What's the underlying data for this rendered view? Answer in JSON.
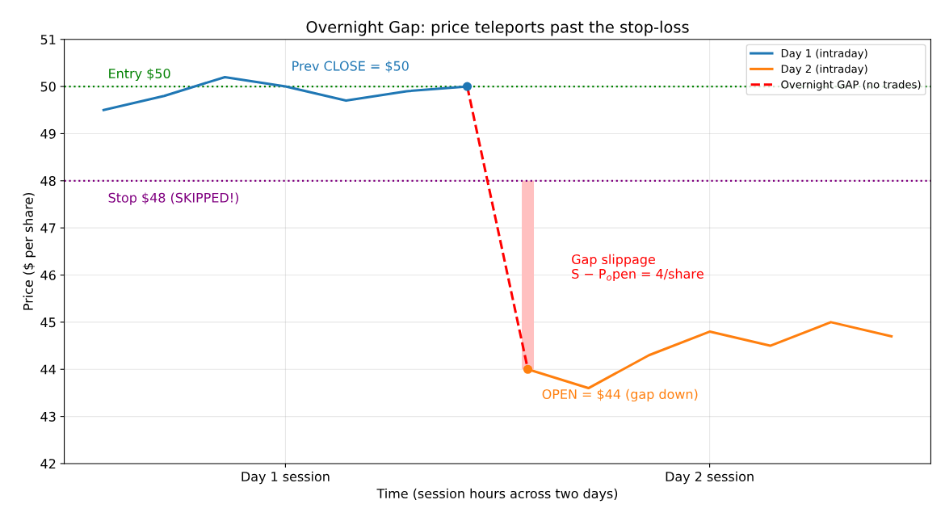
{
  "chart_data": {
    "type": "line",
    "title": "Overnight Gap: price teleports past the stop-loss",
    "xlabel": "Time (session hours across two days)",
    "ylabel": "Price ($ per share)",
    "categories": [
      null,
      null,
      null,
      "Day 1 session",
      null,
      null,
      null,
      null,
      null,
      null,
      "Day 2 session",
      null,
      null,
      null
    ],
    "ylim": [
      42,
      51
    ],
    "yticks": [
      42,
      43,
      44,
      45,
      46,
      47,
      48,
      49,
      50,
      51
    ],
    "series": [
      {
        "name": "Day 1 (intraday)",
        "color": "#1f77b4",
        "values": [
          49.5,
          49.8,
          50.2,
          50.0,
          49.7,
          49.9,
          50.0,
          null,
          null,
          null,
          null,
          null,
          null,
          null
        ]
      },
      {
        "name": "Day 2 (intraday)",
        "color": "#ff7f0e",
        "values": [
          null,
          null,
          null,
          null,
          null,
          null,
          null,
          44.0,
          43.6,
          44.3,
          44.8,
          44.5,
          45.0,
          44.7
        ]
      },
      {
        "name": "Overnight GAP (no trades)",
        "line_style": "dashed",
        "color": "#ff0000",
        "values": [
          null,
          null,
          null,
          null,
          null,
          null,
          50.0,
          44.0,
          null,
          null,
          null,
          null,
          null,
          null
        ]
      },
      {
        "type": "scatter",
        "color": "#1f77b4",
        "values": [
          null,
          null,
          null,
          null,
          null,
          null,
          50.0,
          null,
          null,
          null,
          null,
          null,
          null,
          null
        ]
      },
      {
        "type": "scatter",
        "color": "#ff7f0e",
        "values": [
          null,
          null,
          null,
          null,
          null,
          null,
          null,
          44.0,
          null,
          null,
          null,
          null,
          null,
          null
        ]
      },
      {
        "type": "bar",
        "color": "#ffc0c0",
        "base": [
          null,
          null,
          null,
          null,
          null,
          null,
          null,
          44,
          null,
          null,
          null,
          null,
          null,
          null
        ],
        "values": [
          null,
          null,
          null,
          null,
          null,
          null,
          null,
          4,
          null,
          null,
          null,
          null,
          null,
          null
        ]
      }
    ],
    "ref_lines": [
      {
        "axis": "y",
        "value": 50,
        "label": "Entry $50",
        "color": "#008000",
        "line_style": "dotted"
      },
      {
        "axis": "y",
        "value": 48,
        "label": "Stop $48 (SKIPPED!)",
        "color": "#800080",
        "line_style": "dotted"
      }
    ],
    "annotations": [
      "Prev CLOSE = $50",
      "OPEN = $44 (gap down)",
      "Gap slippage\nS − P$_{o}$pen = 4/share"
    ],
    "grid": true,
    "legend": "top right"
  }
}
